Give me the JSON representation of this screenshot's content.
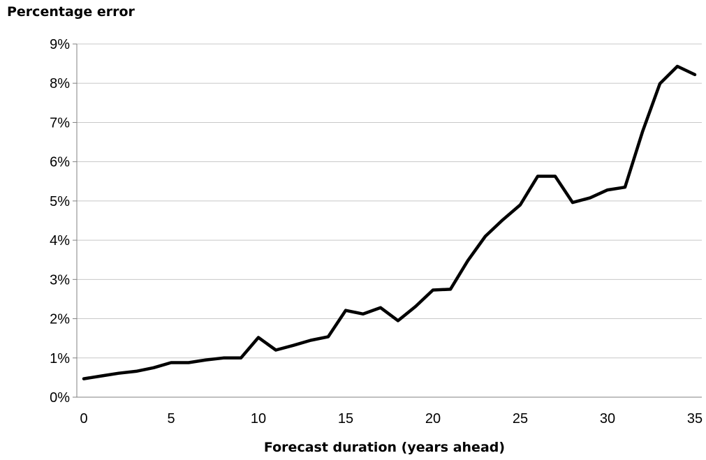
{
  "chart_data": {
    "type": "line",
    "title": "",
    "ylabel": "Percentage error",
    "xlabel": "Forecast duration (years ahead)",
    "xlim": [
      0,
      35.5
    ],
    "ylim": [
      0,
      9
    ],
    "xticks": [
      0,
      5,
      10,
      15,
      20,
      25,
      30,
      35
    ],
    "yticks": [
      0,
      1,
      2,
      3,
      4,
      5,
      6,
      7,
      8,
      9
    ],
    "ytick_labels": [
      "0%",
      "1%",
      "2%",
      "3%",
      "4%",
      "5%",
      "6%",
      "7%",
      "8%",
      "9%"
    ],
    "grid": true,
    "line_color": "#000000",
    "series": [
      {
        "x": [
          0,
          1,
          2,
          3,
          4,
          5,
          6,
          7,
          8,
          9,
          10,
          11,
          12,
          13,
          14,
          15,
          16,
          17,
          18,
          19,
          20,
          21,
          22,
          23,
          24,
          25,
          26,
          27,
          28,
          29,
          30,
          31,
          32,
          33,
          34,
          35
        ],
        "values": [
          0.47,
          0.54,
          0.61,
          0.66,
          0.75,
          0.88,
          0.88,
          0.95,
          1.0,
          1.0,
          1.52,
          1.2,
          1.32,
          1.45,
          1.54,
          2.21,
          2.12,
          2.28,
          1.95,
          2.31,
          2.73,
          2.75,
          3.48,
          4.1,
          4.52,
          4.9,
          5.63,
          5.63,
          4.96,
          5.08,
          5.28,
          5.35,
          6.76,
          7.99,
          8.43,
          8.22
        ]
      }
    ]
  }
}
